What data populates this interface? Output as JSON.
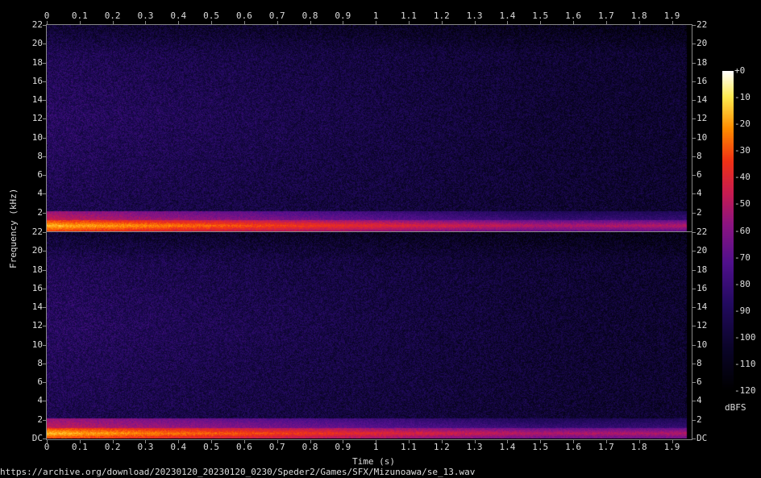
{
  "chart_data": {
    "type": "heatmap",
    "subtype": "spectrogram",
    "channels": 2,
    "xlabel": "Time (s)",
    "ylabel": "Frequency (kHz)",
    "xlim": [
      0,
      1.96
    ],
    "ylim": [
      0,
      22
    ],
    "x_ticks": [
      "0",
      "0.1",
      "0.2",
      "0.3",
      "0.4",
      "0.5",
      "0.6",
      "0.7",
      "0.8",
      "0.9",
      "1",
      "1.1",
      "1.2",
      "1.3",
      "1.4",
      "1.5",
      "1.6",
      "1.7",
      "1.8",
      "1.9"
    ],
    "y_ticks": [
      "DC",
      "2",
      "4",
      "6",
      "8",
      "10",
      "12",
      "14",
      "16",
      "18",
      "20",
      "22"
    ],
    "colorbar": {
      "label": "dBFS",
      "range": [
        -120,
        0
      ],
      "ticks": [
        "+0",
        "-10",
        "-20",
        "-30",
        "-40",
        "-50",
        "-60",
        "-70",
        "-80",
        "-90",
        "-100",
        "-110",
        "-120"
      ]
    },
    "features": {
      "dominant_band_khz": 0.5,
      "dominant_band_level_db_start": -15,
      "dominant_band_level_db_end": -50,
      "background_level_db": -95
    }
  },
  "footer": {
    "source": "https://archive.org/download/20230120_20230120_0230/Speder2/Games/SFX/Mizunoawa/se_13.wav"
  }
}
